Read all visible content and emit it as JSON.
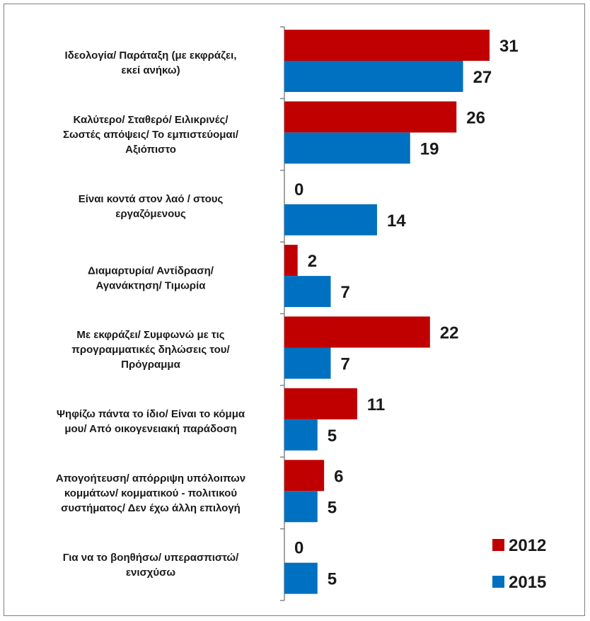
{
  "chart_data": {
    "type": "bar",
    "orientation": "horizontal",
    "categories": [
      [
        "Ιδεολογία/ Παράταξη (με εκφράζει,",
        "εκεί ανήκω)"
      ],
      [
        "Καλύτερο/ Σταθερό/ Ειλικρινές/",
        "Σωστές απόψεις/ Το εμπιστεύομαι/",
        "Αξιόπιστο"
      ],
      [
        "Είναι κοντά στον λαό / στους",
        "εργαζόμενους"
      ],
      [
        "Διαμαρτυρία/ Αντίδραση/",
        "Αγανάκτηση/ Τιμωρία"
      ],
      [
        "Με εκφράζει/ Συμφωνώ με τις",
        "προγραμματικές δηλώσεις του/",
        "Πρόγραμμα"
      ],
      [
        "Ψηφίζω πάντα το ίδιο/ Είναι το κόμμα",
        "μου/ Από οικογενειακή παράδοση"
      ],
      [
        "Απογοήτευση/ απόρριψη υπόλοιπων",
        "κομμάτων/ κομματικού - πολιτικού",
        "συστήματος/ Δεν έχω άλλη επιλογή"
      ],
      [
        "Για να το βοηθήσω/ υπερασπιστώ/",
        "ενισχύσω"
      ]
    ],
    "series": [
      {
        "name": "2012",
        "color": "#c00000",
        "values": [
          31,
          26,
          0,
          2,
          22,
          11,
          6,
          0
        ]
      },
      {
        "name": "2015",
        "color": "#0070c0",
        "values": [
          27,
          19,
          14,
          7,
          7,
          5,
          5,
          5
        ]
      }
    ],
    "xlim": [
      0,
      35
    ],
    "grid": false,
    "legend": "bottom-right"
  }
}
